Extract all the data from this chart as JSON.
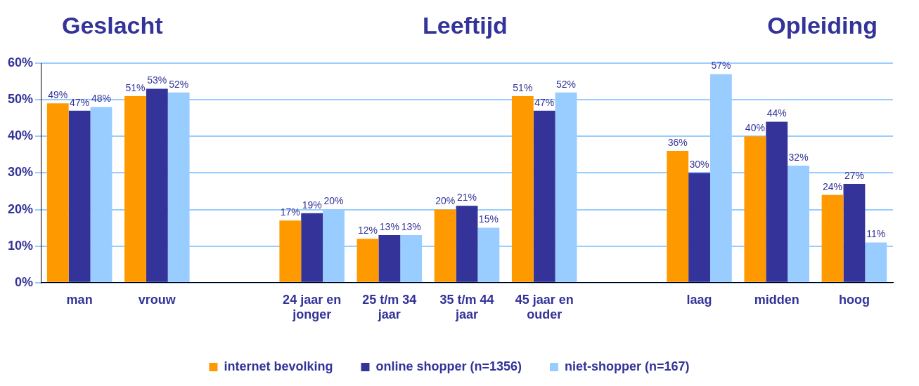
{
  "chart_data": {
    "type": "bar",
    "annotations": [
      "Geslacht",
      "Leeftijd",
      "Opleiding"
    ],
    "categories": [
      "man",
      "vrouw",
      null,
      "24 jaar en jonger",
      "25 t/m 34 jaar",
      "35 t/m 44 jaar",
      "45 jaar en ouder",
      null,
      "laag",
      "midden",
      "hoog"
    ],
    "series": [
      {
        "name": "internet bevolking",
        "color": "#ff9900",
        "values": [
          49,
          51,
          null,
          17,
          12,
          20,
          51,
          null,
          36,
          40,
          24
        ],
        "value_labels": [
          "49%",
          "51%",
          null,
          "17%",
          "12%",
          "20%",
          "51%",
          null,
          "36%",
          "40%",
          "24%"
        ]
      },
      {
        "name": "online shopper (n=1356)",
        "color": "#333399",
        "values": [
          47,
          53,
          null,
          19,
          13,
          21,
          47,
          null,
          30,
          44,
          27
        ],
        "value_labels": [
          "47%",
          "53%",
          null,
          "19%",
          "13%",
          "21%",
          "47%",
          null,
          "30%",
          "44%",
          "27%"
        ]
      },
      {
        "name": "niet-shopper (n=167)",
        "color": "#99ccff",
        "values": [
          48,
          52,
          null,
          20,
          13,
          15,
          52,
          null,
          57,
          32,
          11
        ],
        "value_labels": [
          "48%",
          "52%",
          null,
          "20%",
          "13%",
          "15%",
          "52%",
          null,
          "57%",
          "32%",
          "11%"
        ]
      }
    ],
    "ylim": [
      0,
      60
    ],
    "yticks": [
      {
        "value": 0,
        "label": "0%"
      },
      {
        "value": 10,
        "label": "10%"
      },
      {
        "value": 20,
        "label": "20%"
      },
      {
        "value": 30,
        "label": "30%"
      },
      {
        "value": 40,
        "label": "40%"
      },
      {
        "value": 50,
        "label": "50%"
      },
      {
        "value": 60,
        "label": "60%"
      }
    ],
    "grid": "y",
    "legend": "bottom"
  }
}
